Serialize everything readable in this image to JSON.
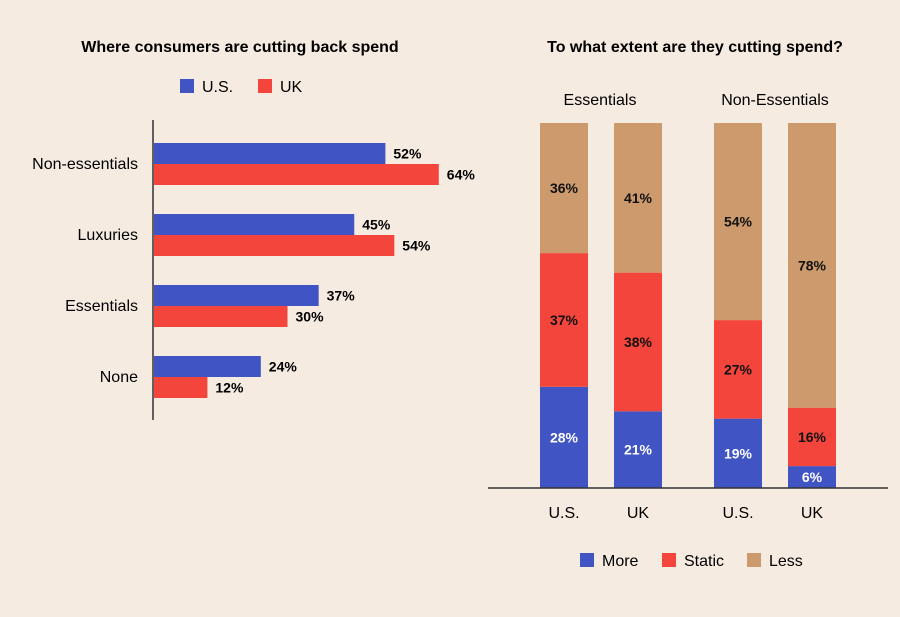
{
  "colors": {
    "background": "#f5ebe1",
    "us": "#4054c4",
    "uk": "#f4453c",
    "more": "#4054c4",
    "static": "#f4453c",
    "less": "#cc9a6c",
    "axis": "#333333"
  },
  "chart_data": [
    {
      "type": "bar",
      "orientation": "horizontal",
      "title": "Where consumers are cutting back spend",
      "legend_position": "top",
      "categories": [
        "Non-essentials",
        "Luxuries",
        "Essentials",
        "None"
      ],
      "series": [
        {
          "name": "U.S.",
          "values": [
            52,
            45,
            37,
            24
          ],
          "labels": [
            "52%",
            "45%",
            "37%",
            "24%"
          ]
        },
        {
          "name": "UK",
          "values": [
            64,
            54,
            30,
            12
          ],
          "labels": [
            "64%",
            "54%",
            "30%",
            "12%"
          ]
        }
      ],
      "xlim": [
        0,
        100
      ],
      "grid": false
    },
    {
      "type": "bar",
      "stacked": true,
      "title": "To what extent are they cutting spend?",
      "legend_position": "bottom",
      "groups": [
        "Essentials",
        "Non-Essentials"
      ],
      "categories": [
        "U.S.",
        "UK",
        "U.S.",
        "UK"
      ],
      "group_of_category": [
        0,
        0,
        1,
        1
      ],
      "series": [
        {
          "name": "More",
          "values": [
            28,
            21,
            19,
            6
          ],
          "labels": [
            "28%",
            "21%",
            "19%",
            "6%"
          ]
        },
        {
          "name": "Static",
          "values": [
            37,
            38,
            27,
            16
          ],
          "labels": [
            "37%",
            "38%",
            "27%",
            "16%"
          ]
        },
        {
          "name": "Less",
          "values": [
            36,
            41,
            54,
            78
          ],
          "labels": [
            "36%",
            "41%",
            "54%",
            "78%"
          ]
        }
      ],
      "ylim": [
        0,
        100
      ],
      "grid": false
    }
  ]
}
